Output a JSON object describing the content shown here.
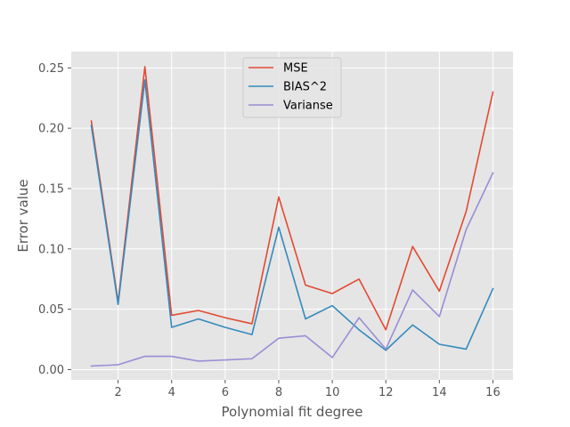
{
  "chart_data": {
    "type": "line",
    "xlabel": "Polynomial fit degree",
    "ylabel": "Error value",
    "xlim": [
      0.25,
      16.75
    ],
    "ylim": [
      -0.0085,
      0.2635
    ],
    "xticks": [
      2,
      4,
      6,
      8,
      10,
      12,
      14,
      16
    ],
    "xtick_labels": [
      "2",
      "4",
      "6",
      "8",
      "10",
      "12",
      "14",
      "16"
    ],
    "yticks": [
      0.0,
      0.05,
      0.1,
      0.15,
      0.2,
      0.25
    ],
    "ytick_labels": [
      "0.00",
      "0.05",
      "0.10",
      "0.15",
      "0.20",
      "0.25"
    ],
    "grid": true,
    "legend_position": "top-center",
    "x": [
      1,
      2,
      3,
      4,
      5,
      6,
      7,
      8,
      9,
      10,
      11,
      12,
      13,
      14,
      15,
      16
    ],
    "series": [
      {
        "name": "MSE",
        "color": "#E24A33",
        "values": [
          0.206,
          0.056,
          0.251,
          0.045,
          0.049,
          0.043,
          0.038,
          0.143,
          0.07,
          0.063,
          0.075,
          0.033,
          0.102,
          0.065,
          0.131,
          0.23
        ]
      },
      {
        "name": "BIAS^2",
        "color": "#348ABD",
        "values": [
          0.202,
          0.054,
          0.24,
          0.035,
          0.042,
          0.035,
          0.029,
          0.118,
          0.042,
          0.053,
          0.033,
          0.016,
          0.037,
          0.021,
          0.017,
          0.067
        ]
      },
      {
        "name": "Varianse",
        "color": "#988ED5",
        "values": [
          0.003,
          0.004,
          0.011,
          0.011,
          0.007,
          0.008,
          0.009,
          0.026,
          0.028,
          0.01,
          0.043,
          0.017,
          0.066,
          0.044,
          0.116,
          0.163
        ]
      }
    ]
  }
}
